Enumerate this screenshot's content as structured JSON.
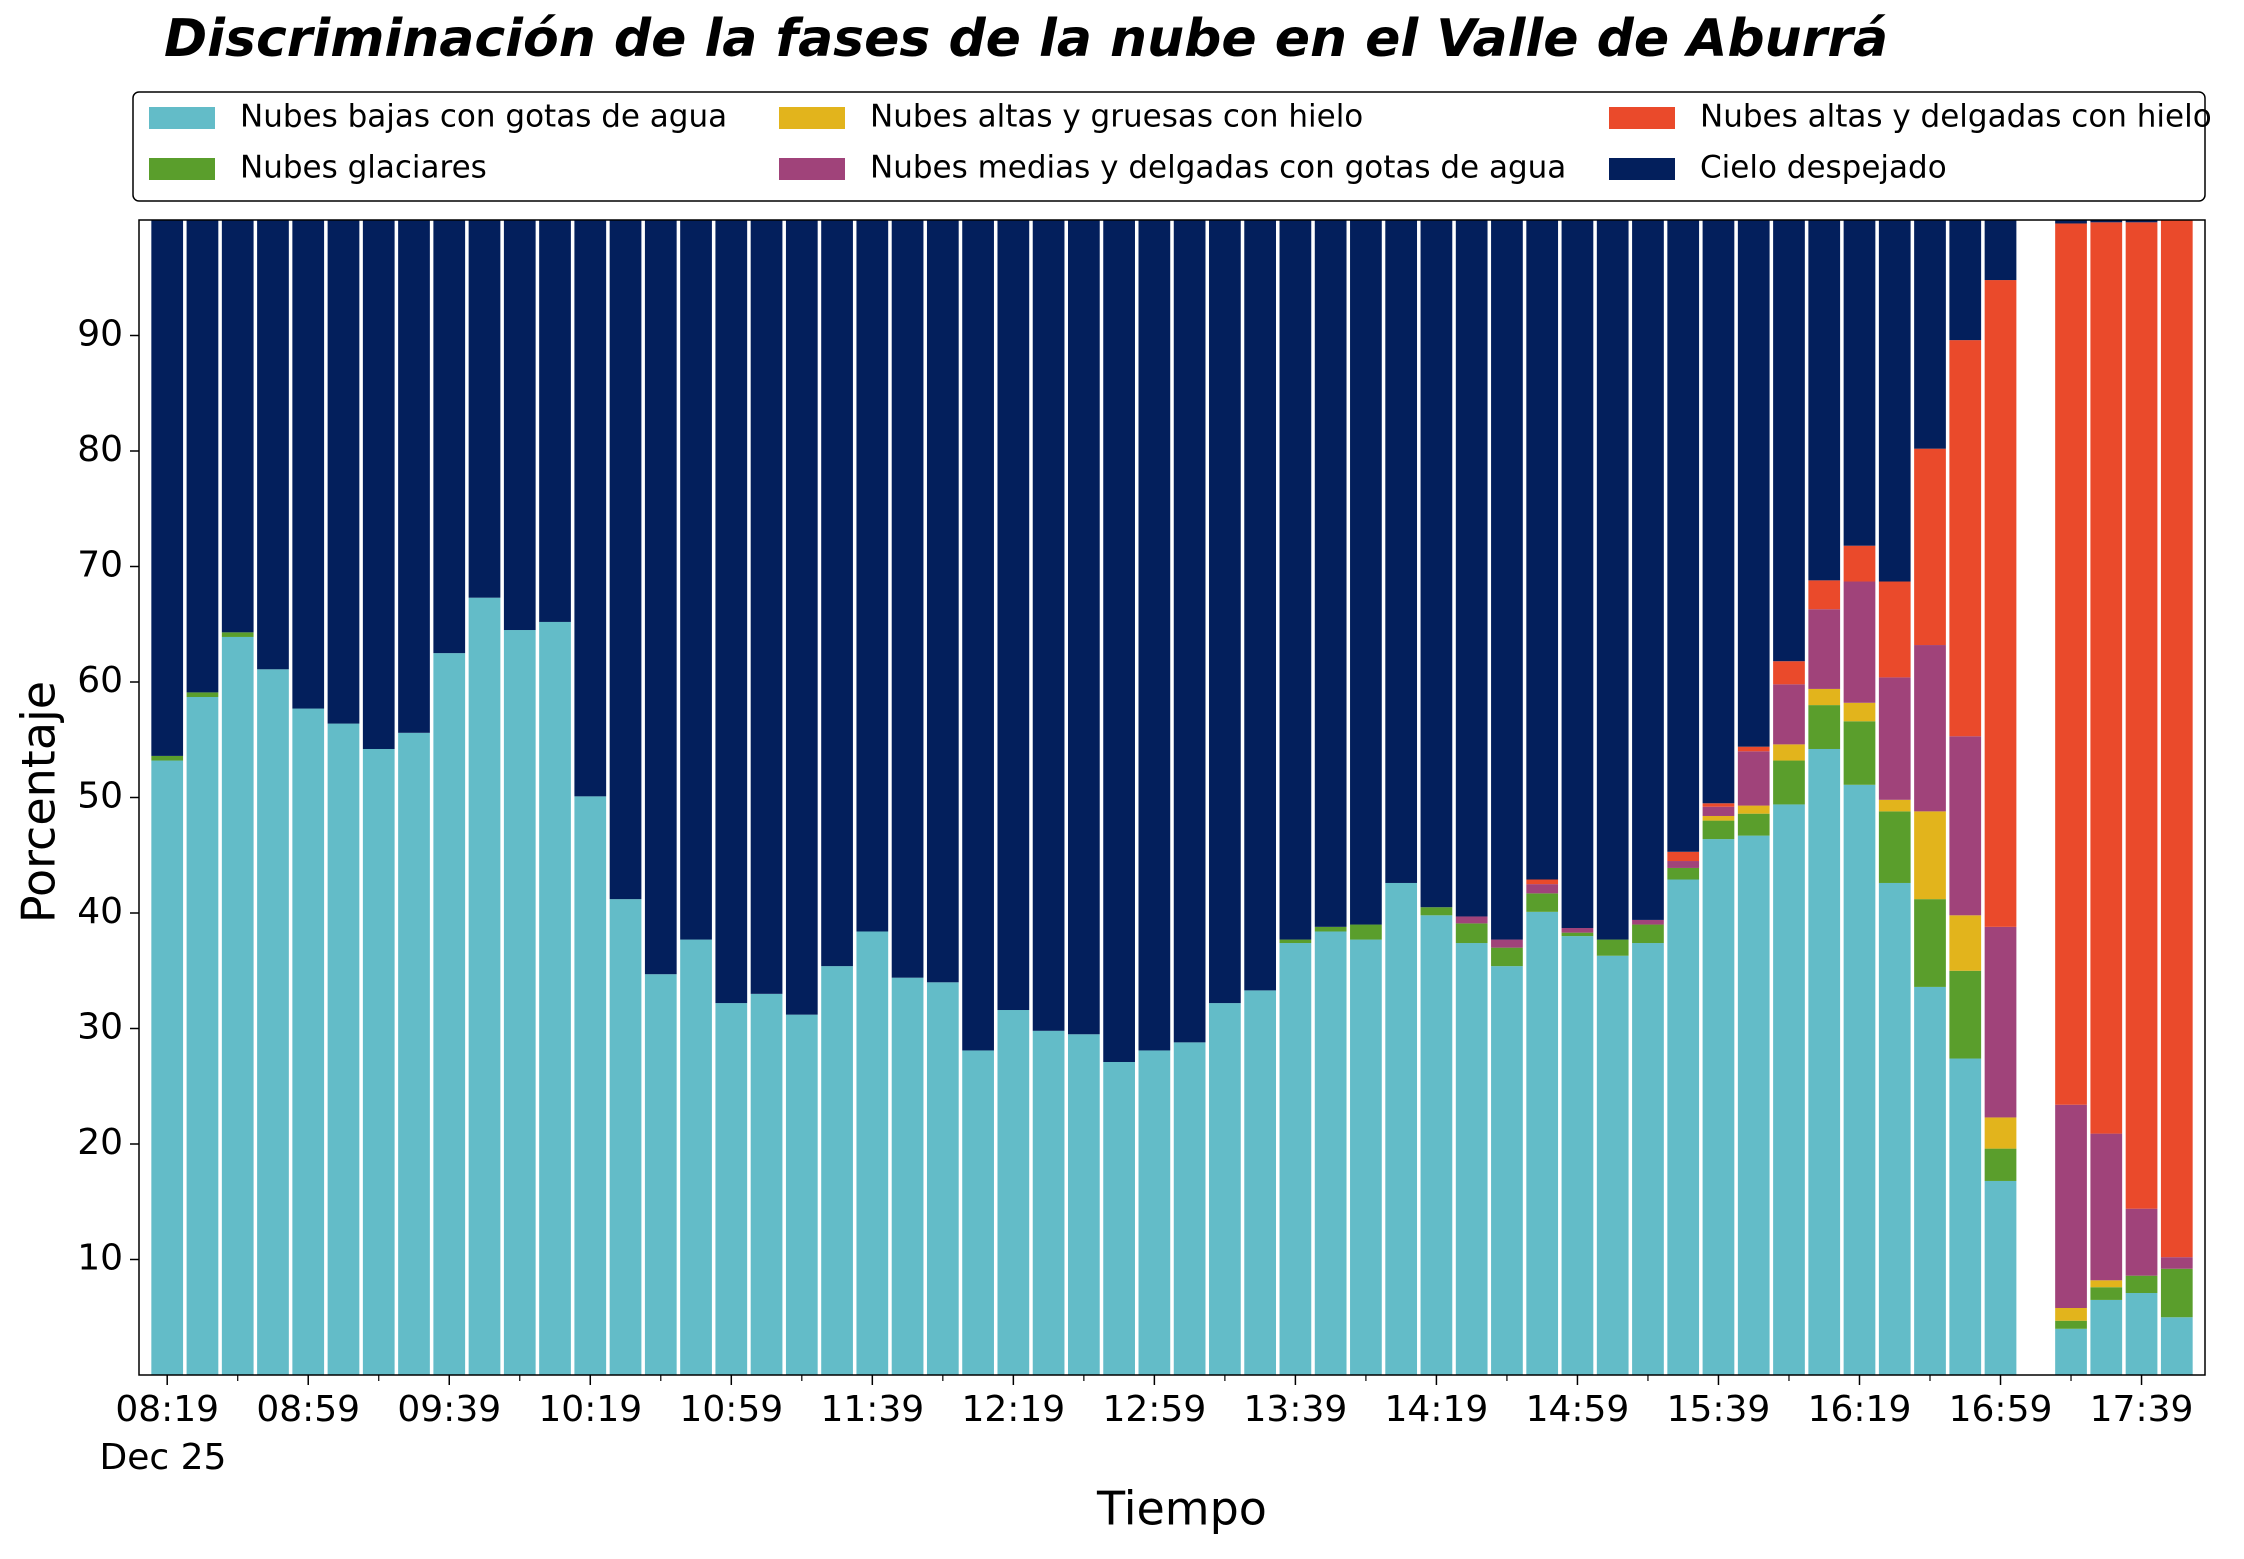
{
  "chart_data": {
    "type": "stacked_bar",
    "title": "Discriminación de la fases de la nube en el Valle de Aburrá",
    "xlabel": "Tiempo",
    "ylabel": "Porcentaje",
    "x_date": "Dec 25",
    "categories": [
      "08:19",
      null,
      null,
      null,
      "08:59",
      null,
      null,
      null,
      "09:39",
      null,
      null,
      null,
      "10:19",
      null,
      null,
      null,
      "10:59",
      null,
      null,
      null,
      "11:39",
      null,
      null,
      null,
      "12:19",
      null,
      null,
      null,
      "12:59",
      null,
      null,
      null,
      "13:39",
      null,
      null,
      null,
      "14:19",
      null,
      null,
      null,
      "14:59",
      null,
      null,
      null,
      "15:39",
      null,
      null,
      null,
      "16:19",
      null,
      null,
      null,
      "16:59",
      null,
      null,
      null,
      "17:39",
      null
    ],
    "ylim": [
      0,
      100
    ],
    "yticks": [
      10,
      20,
      30,
      40,
      50,
      60,
      70,
      80,
      90
    ],
    "legend": "top",
    "grid": false,
    "series": [
      {
        "name": "Nubes bajas con gotas de agua",
        "color": "#63bcc8",
        "values": [
          53.2,
          58.7,
          63.9,
          61.1,
          57.7,
          56.4,
          54.2,
          55.6,
          62.5,
          67.3,
          64.5,
          65.2,
          50.1,
          41.2,
          34.7,
          37.7,
          32.2,
          33.0,
          31.2,
          35.4,
          38.4,
          34.4,
          34.0,
          28.1,
          31.6,
          29.8,
          29.5,
          27.1,
          28.1,
          28.8,
          32.2,
          33.3,
          37.4,
          38.4,
          37.7,
          42.6,
          39.8,
          37.4,
          35.4,
          40.1,
          38.0,
          36.3,
          37.4,
          42.9,
          46.4,
          46.7,
          49.4,
          54.2,
          51.1,
          42.6,
          33.6,
          27.4,
          16.8,
          null,
          4.0,
          6.5,
          7.1,
          5.0
        ]
      },
      {
        "name": "Nubes glaciares",
        "color": "#5a9e2c",
        "values": [
          0.4,
          0.4,
          0.4,
          0,
          0,
          0,
          0,
          0,
          0,
          0,
          0,
          0,
          0,
          0,
          0,
          0,
          0,
          0,
          0,
          0,
          0,
          0,
          0,
          0,
          0,
          0,
          0,
          0,
          0,
          0,
          0,
          0,
          0.3,
          0.4,
          1.3,
          0,
          0.7,
          1.7,
          1.6,
          1.6,
          0.3,
          1.4,
          1.6,
          1.0,
          1.6,
          1.9,
          3.8,
          3.8,
          5.5,
          6.2,
          7.6,
          7.6,
          2.8,
          null,
          0.7,
          1.1,
          1.5,
          4.2
        ]
      },
      {
        "name": "Nubes altas y gruesas con hielo",
        "color": "#e2b41c",
        "values": [
          0,
          0,
          0,
          0,
          0,
          0,
          0,
          0,
          0,
          0,
          0,
          0,
          0,
          0,
          0,
          0,
          0,
          0,
          0,
          0,
          0,
          0,
          0,
          0,
          0,
          0,
          0,
          0,
          0,
          0,
          0,
          0,
          0,
          0,
          0,
          0,
          0,
          0,
          0,
          0,
          0,
          0,
          0,
          0,
          0.4,
          0.7,
          1.4,
          1.4,
          1.6,
          1.0,
          7.6,
          4.8,
          2.7,
          null,
          1.1,
          0.6,
          0,
          0
        ]
      },
      {
        "name": "Nubes medias y delgadas con gotas de agua",
        "color": "#a0437a",
        "values": [
          0,
          0,
          0,
          0,
          0,
          0,
          0,
          0,
          0,
          0,
          0,
          0,
          0,
          0,
          0,
          0,
          0,
          0,
          0,
          0,
          0,
          0,
          0,
          0,
          0,
          0,
          0,
          0,
          0,
          0,
          0,
          0,
          0,
          0,
          0,
          0,
          0,
          0.6,
          0.7,
          0.8,
          0.4,
          0,
          0.4,
          0.6,
          0.8,
          4.7,
          5.2,
          6.9,
          10.5,
          10.6,
          14.4,
          15.5,
          16.5,
          null,
          17.6,
          12.7,
          5.8,
          1.0
        ]
      },
      {
        "name": "Nubes altas y delgadas con hielo",
        "color": "#ea4a2b",
        "values": [
          0,
          0,
          0,
          0,
          0,
          0,
          0,
          0,
          0,
          0,
          0,
          0,
          0,
          0,
          0,
          0,
          0,
          0,
          0,
          0,
          0,
          0,
          0,
          0,
          0,
          0,
          0,
          0,
          0,
          0,
          0,
          0,
          0,
          0,
          0,
          0,
          0,
          0,
          0,
          0.4,
          0,
          0,
          0,
          0.8,
          0.3,
          0.4,
          2.0,
          2.5,
          3.1,
          8.3,
          17.0,
          34.3,
          56.0,
          null,
          76.3,
          78.9,
          85.4,
          89.8
        ]
      },
      {
        "name": "Cielo despejado",
        "color": "#031f5c",
        "values": [
          46.4,
          40.9,
          35.7,
          38.9,
          42.3,
          43.6,
          45.8,
          44.4,
          37.5,
          32.7,
          35.5,
          34.8,
          49.9,
          58.8,
          65.3,
          62.3,
          67.8,
          67.0,
          68.8,
          64.6,
          61.6,
          65.6,
          66.0,
          71.9,
          68.4,
          70.2,
          70.5,
          72.9,
          71.9,
          71.2,
          67.8,
          66.7,
          62.3,
          61.2,
          61.0,
          57.4,
          59.5,
          60.3,
          62.3,
          57.1,
          61.3,
          62.3,
          60.6,
          54.7,
          50.5,
          45.6,
          38.2,
          31.2,
          28.2,
          31.3,
          19.8,
          10.4,
          5.2,
          null,
          0.3,
          0.2,
          0.2,
          0
        ]
      }
    ]
  }
}
